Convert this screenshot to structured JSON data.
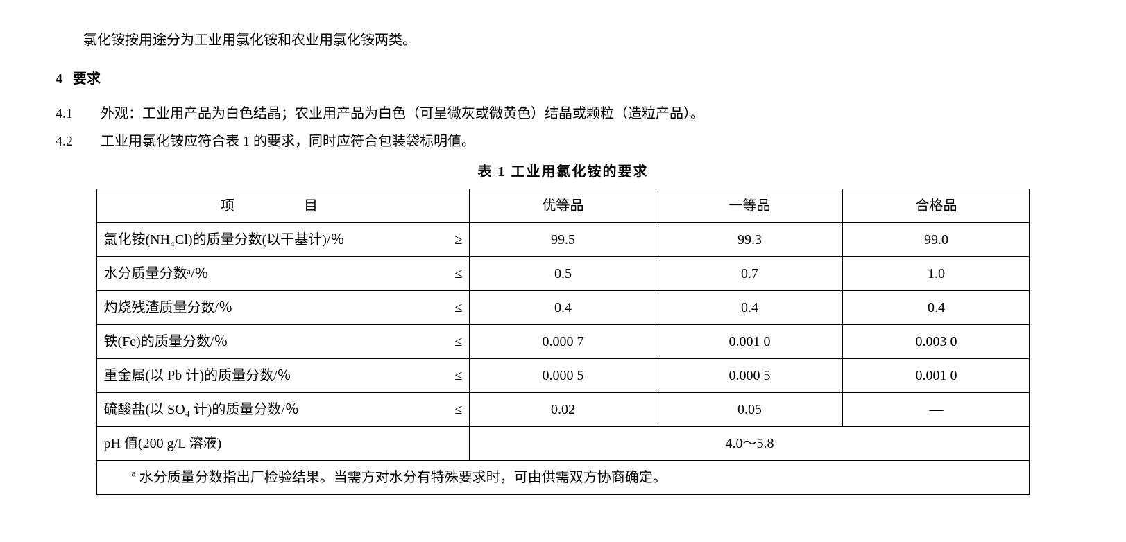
{
  "intro": "氯化铵按用途分为工业用氯化铵和农业用氯化铵两类。",
  "section4": {
    "num": "4",
    "title": "要求"
  },
  "clause41": {
    "num": "4.1",
    "text": "外观：工业用产品为白色结晶；农业用产品为白色（可呈微灰或微黄色）结晶或颗粒（造粒产品）。"
  },
  "clause42": {
    "num": "4.2",
    "text": "工业用氯化铵应符合表 1 的要求，同时应符合包装袋标明值。"
  },
  "table": {
    "title": "表 1  工业用氯化铵的要求",
    "head": {
      "item": "项　目",
      "g1": "优等品",
      "g2": "一等品",
      "g3": "合格品"
    },
    "rows": [
      {
        "label": "氯化铵(NH₄Cl)的质量分数(以干基计)/％",
        "op": "≥",
        "g1": "99.5",
        "g2": "99.3",
        "g3": "99.0"
      },
      {
        "label": "水分质量分数ᵃ/％",
        "op": "≤",
        "g1": "0.5",
        "g2": "0.7",
        "g3": "1.0"
      },
      {
        "label": "灼烧残渣质量分数/％",
        "op": "≤",
        "g1": "0.4",
        "g2": "0.4",
        "g3": "0.4"
      },
      {
        "label": "铁(Fe)的质量分数/％",
        "op": "≤",
        "g1": "0.000 7",
        "g2": "0.001 0",
        "g3": "0.003 0"
      },
      {
        "label": "重金属(以 Pb 计)的质量分数/％",
        "op": "≤",
        "g1": "0.000 5",
        "g2": "0.000 5",
        "g3": "0.001 0"
      },
      {
        "label": "硫酸盐(以 SO₄ 计)的质量分数/％",
        "op": "≤",
        "g1": "0.02",
        "g2": "0.05",
        "g3": "—"
      }
    ],
    "phRow": {
      "label": "pH 值(200 g/L 溶液)",
      "value": "4.0～5.8"
    },
    "footnote": {
      "mark": "a",
      "text": "水分质量分数指出厂检验结果。当需方对水分有特殊要求时，可由供需双方协商确定。"
    }
  }
}
